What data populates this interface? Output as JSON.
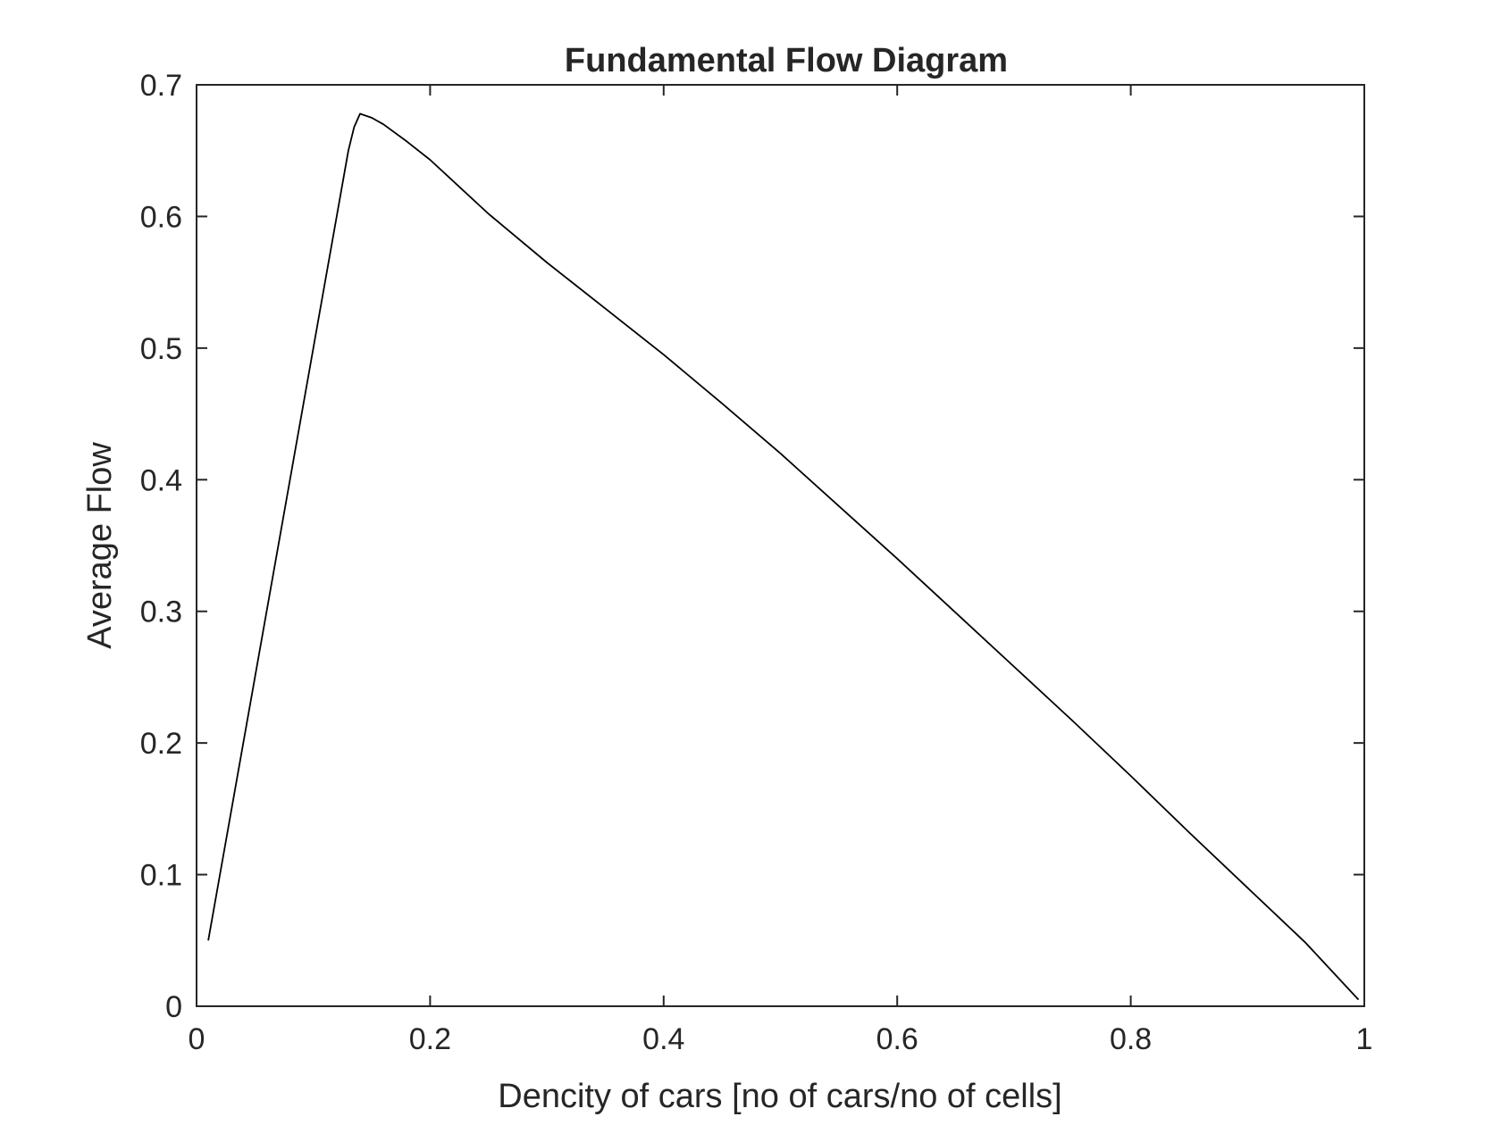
{
  "chart_data": {
    "type": "line",
    "title": "Fundamental Flow Diagram",
    "xlabel": "Dencity of cars [no of cars/no of cells]",
    "ylabel": "Average Flow",
    "xlim": [
      0,
      1
    ],
    "ylim": [
      0,
      0.7
    ],
    "xticks": [
      "0",
      "0.2",
      "0.4",
      "0.6",
      "0.8",
      "1"
    ],
    "yticks": [
      "0",
      "0.1",
      "0.2",
      "0.3",
      "0.4",
      "0.5",
      "0.6",
      "0.7"
    ],
    "grid": false,
    "line_color": "#000000",
    "series": [
      {
        "x": [
          0.01,
          0.13,
          0.135,
          0.14,
          0.15,
          0.16,
          0.18,
          0.2,
          0.25,
          0.3,
          0.35,
          0.4,
          0.45,
          0.5,
          0.55,
          0.6,
          0.65,
          0.7,
          0.75,
          0.8,
          0.85,
          0.9,
          0.95,
          0.995
        ],
        "y": [
          0.05,
          0.65,
          0.668,
          0.678,
          0.675,
          0.67,
          0.657,
          0.643,
          0.602,
          0.565,
          0.53,
          0.495,
          0.458,
          0.42,
          0.38,
          0.34,
          0.299,
          0.258,
          0.217,
          0.175,
          0.132,
          0.09,
          0.048,
          0.005
        ]
      }
    ]
  }
}
